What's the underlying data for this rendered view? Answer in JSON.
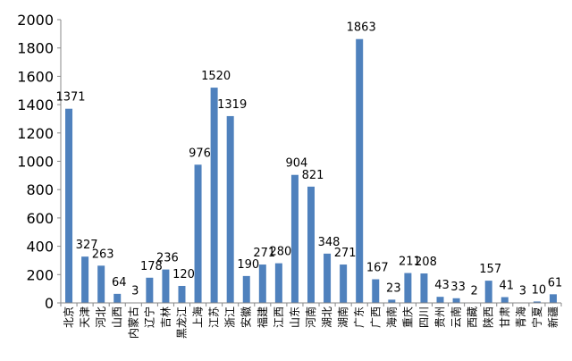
{
  "chart_data": {
    "type": "bar",
    "categories": [
      "北京",
      "天津",
      "河北",
      "山西",
      "内蒙古",
      "辽宁",
      "吉林",
      "黑龙江",
      "上海",
      "江苏",
      "浙江",
      "安徽",
      "福建",
      "江西",
      "山东",
      "河南",
      "湖北",
      "湖南",
      "广东",
      "广西",
      "海南",
      "重庆",
      "四川",
      "贵州",
      "云南",
      "西藏",
      "陕西",
      "甘肃",
      "青海",
      "宁夏",
      "新疆"
    ],
    "values": [
      1371,
      327,
      263,
      64,
      3,
      178,
      236,
      120,
      976,
      1520,
      1319,
      190,
      271,
      280,
      904,
      821,
      348,
      271,
      1863,
      167,
      23,
      211,
      208,
      43,
      33,
      2,
      157,
      41,
      3,
      10,
      61
    ],
    "ylim": [
      0,
      2000
    ],
    "yticks": [
      0,
      200,
      400,
      600,
      800,
      1000,
      1200,
      1400,
      1600,
      1800,
      2000
    ],
    "bar_color": "#4f81bd",
    "grid": false,
    "title": "",
    "xlabel": "",
    "ylabel": ""
  }
}
